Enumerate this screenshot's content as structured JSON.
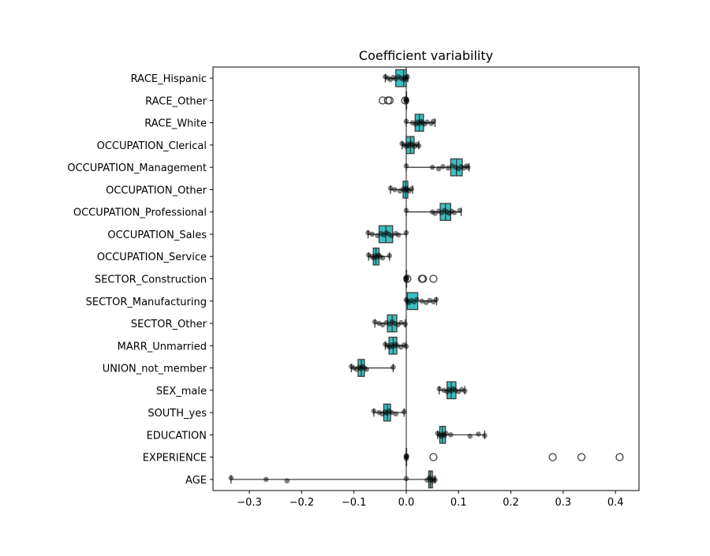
{
  "chart_data": {
    "type": "boxplot",
    "title": "Coefficient variability",
    "xlim": [
      -0.3695,
      0.445
    ],
    "xticks": [
      -0.3,
      -0.2,
      -0.1,
      0.0,
      0.1,
      0.2,
      0.3,
      0.4
    ],
    "xtick_labels": [
      "−0.3",
      "−0.2",
      "−0.1",
      "0.0",
      "0.1",
      "0.2",
      "0.3",
      "0.4"
    ],
    "box_color": "#3bbfbf",
    "point_color": "#000000",
    "reference_line": 0,
    "categories": [
      "RACE_Hispanic",
      "RACE_Other",
      "RACE_White",
      "OCCUPATION_Clerical",
      "OCCUPATION_Management",
      "OCCUPATION_Other",
      "OCCUPATION_Professional",
      "OCCUPATION_Sales",
      "OCCUPATION_Service",
      "SECTOR_Construction",
      "SECTOR_Manufacturing",
      "SECTOR_Other",
      "MARR_Unmarried",
      "UNION_not_member",
      "SEX_male",
      "SOUTH_yes",
      "EDUCATION",
      "EXPERIENCE",
      "AGE"
    ],
    "boxes": [
      {
        "q1": -0.02,
        "med": -0.005,
        "q3": 0.0,
        "lo": -0.04,
        "hi": 0.003,
        "outliers": [],
        "points": [
          -0.04,
          -0.035,
          -0.03,
          -0.025,
          -0.02,
          -0.015,
          -0.01,
          -0.005,
          -0.003,
          0.0,
          0.002
        ]
      },
      {
        "q1": 0.0,
        "med": 0.0,
        "q3": 0.0,
        "lo": 0.0,
        "hi": 0.0,
        "outliers": [
          -0.045,
          -0.035,
          -0.032,
          -0.002
        ],
        "points": [
          0.0,
          0.0,
          0.0,
          -0.001
        ]
      },
      {
        "q1": 0.017,
        "med": 0.025,
        "q3": 0.033,
        "lo": 0.0,
        "hi": 0.055,
        "outliers": [],
        "points": [
          0.0,
          0.012,
          0.018,
          0.022,
          0.025,
          0.028,
          0.031,
          0.035,
          0.04,
          0.048,
          0.052
        ]
      },
      {
        "q1": 0.0,
        "med": 0.008,
        "q3": 0.015,
        "lo": -0.008,
        "hi": 0.024,
        "outliers": [],
        "points": [
          -0.008,
          -0.004,
          0.0,
          0.003,
          0.006,
          0.009,
          0.012,
          0.016,
          0.02,
          0.024
        ]
      },
      {
        "q1": 0.085,
        "med": 0.096,
        "q3": 0.107,
        "lo": 0.0,
        "hi": 0.12,
        "outliers": [],
        "points": [
          0.0,
          0.05,
          0.062,
          0.07,
          0.08,
          0.088,
          0.095,
          0.1,
          0.105,
          0.11,
          0.115,
          0.118
        ]
      },
      {
        "q1": -0.006,
        "med": -0.001,
        "q3": 0.003,
        "lo": -0.03,
        "hi": 0.012,
        "outliers": [],
        "points": [
          -0.03,
          -0.022,
          -0.012,
          -0.006,
          -0.003,
          0.0,
          0.002,
          0.005,
          0.01
        ]
      },
      {
        "q1": 0.065,
        "med": 0.075,
        "q3": 0.085,
        "lo": 0.0,
        "hi": 0.105,
        "outliers": [],
        "points": [
          0.0,
          0.05,
          0.055,
          0.062,
          0.068,
          0.073,
          0.078,
          0.082,
          0.087,
          0.092,
          0.102
        ]
      },
      {
        "q1": -0.052,
        "med": -0.039,
        "q3": -0.026,
        "lo": -0.073,
        "hi": 0.0,
        "outliers": [],
        "points": [
          -0.073,
          -0.065,
          -0.055,
          -0.048,
          -0.043,
          -0.038,
          -0.033,
          -0.028,
          -0.02,
          -0.015,
          0.0
        ]
      },
      {
        "q1": -0.063,
        "med": -0.058,
        "q3": -0.052,
        "lo": -0.072,
        "hi": -0.032,
        "outliers": [],
        "points": [
          -0.072,
          -0.066,
          -0.062,
          -0.059,
          -0.056,
          -0.053,
          -0.05,
          -0.045,
          -0.032
        ]
      },
      {
        "q1": 0.0,
        "med": 0.0,
        "q3": 0.0,
        "lo": 0.0,
        "hi": 0.0,
        "outliers": [
          0.002,
          0.03,
          0.032,
          0.052
        ],
        "points": [
          0.0,
          0.0,
          0.0,
          0.001
        ]
      },
      {
        "q1": 0.002,
        "med": 0.002,
        "q3": 0.022,
        "lo": 0.0,
        "hi": 0.058,
        "outliers": [],
        "points": [
          0.0,
          0.002,
          0.005,
          0.01,
          0.015,
          0.02,
          0.03,
          0.038,
          0.045,
          0.052,
          0.057
        ]
      },
      {
        "q1": -0.036,
        "med": -0.027,
        "q3": -0.018,
        "lo": -0.06,
        "hi": -0.002,
        "outliers": [],
        "points": [
          -0.06,
          -0.052,
          -0.045,
          -0.038,
          -0.032,
          -0.027,
          -0.022,
          -0.016,
          -0.01,
          -0.002
        ]
      },
      {
        "q1": -0.033,
        "med": -0.025,
        "q3": -0.018,
        "lo": -0.04,
        "hi": 0.0,
        "outliers": [],
        "points": [
          -0.04,
          -0.036,
          -0.032,
          -0.028,
          -0.025,
          -0.021,
          -0.017,
          -0.01,
          -0.004,
          0.0
        ]
      },
      {
        "q1": -0.092,
        "med": -0.086,
        "q3": -0.08,
        "lo": -0.105,
        "hi": -0.025,
        "outliers": [],
        "points": [
          -0.105,
          -0.1,
          -0.095,
          -0.09,
          -0.087,
          -0.084,
          -0.08,
          -0.076,
          -0.025
        ]
      },
      {
        "q1": 0.078,
        "med": 0.086,
        "q3": 0.095,
        "lo": 0.063,
        "hi": 0.112,
        "outliers": [],
        "points": [
          0.063,
          0.072,
          0.078,
          0.082,
          0.086,
          0.09,
          0.094,
          0.1,
          0.106,
          0.112
        ]
      },
      {
        "q1": -0.043,
        "med": -0.036,
        "q3": -0.03,
        "lo": -0.062,
        "hi": -0.004,
        "outliers": [],
        "points": [
          -0.062,
          -0.052,
          -0.046,
          -0.041,
          -0.037,
          -0.033,
          -0.028,
          -0.02,
          -0.004
        ]
      },
      {
        "q1": 0.064,
        "med": 0.069,
        "q3": 0.075,
        "lo": 0.06,
        "hi": 0.15,
        "outliers": [],
        "points": [
          0.06,
          0.064,
          0.067,
          0.07,
          0.073,
          0.076,
          0.085,
          0.122,
          0.138,
          0.15
        ]
      },
      {
        "q1": 0.0,
        "med": 0.0,
        "q3": 0.0,
        "lo": 0.0,
        "hi": 0.0,
        "outliers": [
          0.052,
          0.28,
          0.335,
          0.408
        ],
        "points": [
          0.0,
          0.0,
          0.0,
          0.001
        ]
      },
      {
        "q1": 0.043,
        "med": 0.046,
        "q3": 0.05,
        "lo": -0.335,
        "hi": 0.055,
        "outliers": [],
        "points": [
          -0.335,
          -0.268,
          -0.228,
          0.0,
          0.04,
          0.044,
          0.047,
          0.05,
          0.053,
          0.055
        ]
      }
    ]
  }
}
